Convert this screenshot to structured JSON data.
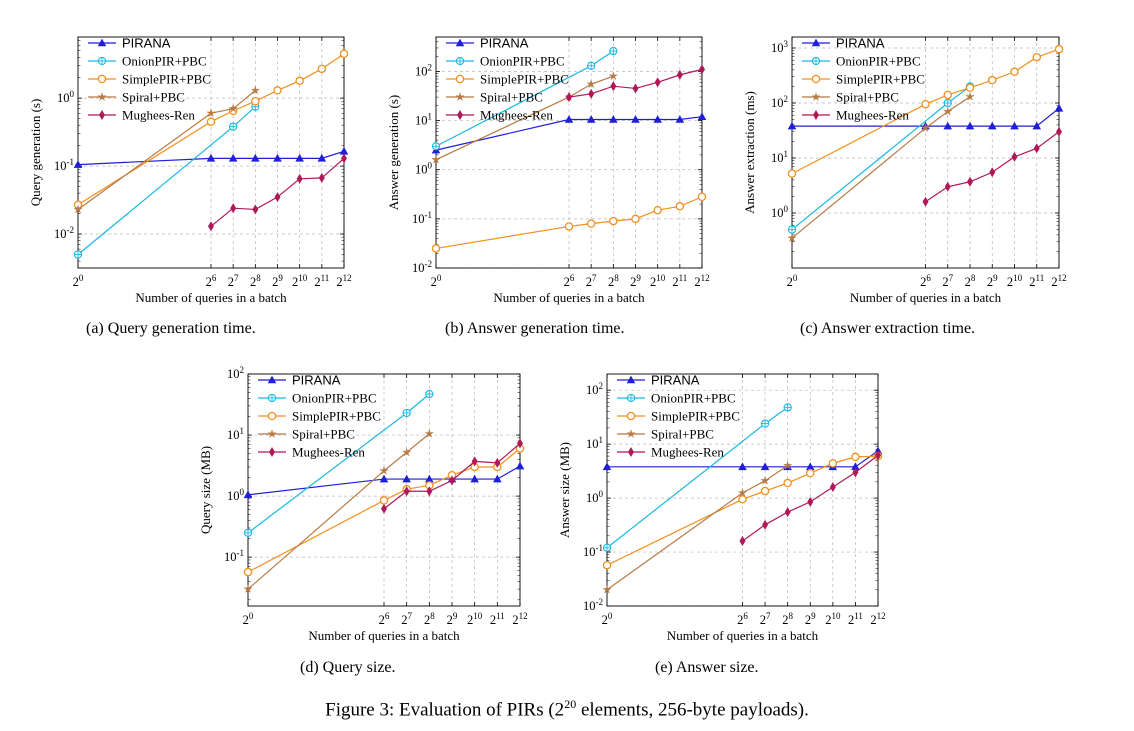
{
  "figure": {
    "caption_prefix": "Figure 3: Evaluation of PIRs (2",
    "caption_sup": "20",
    "caption_suffix": " elements, 256-byte payloads)."
  },
  "legend_names": [
    "PIRANA",
    "OnionPIR+PBC",
    "SimplePIR+PBC",
    "Spiral+PBC",
    "Mughees-Ren"
  ],
  "series_styles": [
    {
      "color": "#1f1fd6",
      "marker": "triangle"
    },
    {
      "color": "#1ab8e0",
      "marker": "circle-plus"
    },
    {
      "color": "#f0901e",
      "marker": "circle"
    },
    {
      "color": "#b87a45",
      "marker": "star"
    },
    {
      "color": "#b0185a",
      "marker": "diamond"
    }
  ],
  "chart_data": [
    {
      "id": "a",
      "type": "line",
      "caption": "(a) Query generation time.",
      "xlabel": "Number of queries in a batch",
      "ylabel": "Query generation (s)",
      "x_scale": "log2",
      "y_scale": "log10",
      "xlim_exp": [
        0,
        12
      ],
      "ylim_exp": [
        -2.5,
        0.9
      ],
      "ytick_exps": [
        -2,
        -1,
        0
      ],
      "xticks": [
        "2⁰",
        "2⁶",
        "2⁷",
        "2⁸",
        "2⁹",
        "2¹⁰",
        "2¹¹",
        "2¹²"
      ],
      "xtick_exps": [
        0,
        6,
        7,
        8,
        9,
        10,
        11,
        12
      ],
      "series": [
        {
          "name": "PIRANA",
          "x_exp": [
            0,
            6,
            7,
            8,
            9,
            10,
            11,
            12
          ],
          "y": [
            0.105,
            0.13,
            0.13,
            0.13,
            0.13,
            0.13,
            0.13,
            0.165
          ]
        },
        {
          "name": "OnionPIR+PBC",
          "x_exp": [
            0,
            7,
            8
          ],
          "y": [
            0.005,
            0.38,
            0.75
          ]
        },
        {
          "name": "SimplePIR+PBC",
          "x_exp": [
            0,
            6,
            7,
            8,
            9,
            10,
            11,
            12
          ],
          "y": [
            0.027,
            0.45,
            0.65,
            0.9,
            1.3,
            1.8,
            2.7,
            4.5
          ]
        },
        {
          "name": "Spiral+PBC",
          "x_exp": [
            0,
            6,
            7,
            8
          ],
          "y": [
            0.023,
            0.6,
            0.7,
            1.3
          ]
        },
        {
          "name": "Mughees-Ren",
          "x_exp": [
            6,
            7,
            8,
            9,
            10,
            11,
            12
          ],
          "y": [
            0.013,
            0.024,
            0.023,
            0.035,
            0.065,
            0.067,
            0.13
          ]
        }
      ]
    },
    {
      "id": "b",
      "type": "line",
      "caption": "(b) Answer generation time.",
      "xlabel": "Number of queries in a batch",
      "ylabel": "Answer generation (s)",
      "x_scale": "log2",
      "y_scale": "log10",
      "xlim_exp": [
        0,
        12
      ],
      "ylim_exp": [
        -2,
        2.7
      ],
      "ytick_exps": [
        -2,
        -1,
        0,
        1,
        2
      ],
      "xticks": [
        "2⁰",
        "2⁶",
        "2⁷",
        "2⁸",
        "2⁹",
        "2¹⁰",
        "2¹¹",
        "2¹²"
      ],
      "xtick_exps": [
        0,
        6,
        7,
        8,
        9,
        10,
        11,
        12
      ],
      "series": [
        {
          "name": "PIRANA",
          "x_exp": [
            0,
            6,
            7,
            8,
            9,
            10,
            11,
            12
          ],
          "y": [
            2.5,
            10.5,
            10.5,
            10.5,
            10.5,
            10.5,
            10.5,
            12
          ]
        },
        {
          "name": "OnionPIR+PBC",
          "x_exp": [
            0,
            7,
            8
          ],
          "y": [
            3,
            130,
            260
          ]
        },
        {
          "name": "SimplePIR+PBC",
          "x_exp": [
            0,
            6,
            7,
            8,
            9,
            10,
            11,
            12
          ],
          "y": [
            0.025,
            0.07,
            0.08,
            0.09,
            0.1,
            0.15,
            0.18,
            0.28
          ]
        },
        {
          "name": "Spiral+PBC",
          "x_exp": [
            0,
            6,
            7,
            8
          ],
          "y": [
            1.6,
            30,
            55,
            80
          ]
        },
        {
          "name": "Mughees-Ren",
          "x_exp": [
            6,
            7,
            8,
            9,
            10,
            11,
            12
          ],
          "y": [
            30,
            35,
            50,
            45,
            60,
            85,
            110
          ]
        }
      ]
    },
    {
      "id": "c",
      "type": "line",
      "caption": "(c) Answer extraction time.",
      "xlabel": "Number of queries in a batch",
      "ylabel": "Answer extraction (ms)",
      "x_scale": "log2",
      "y_scale": "log10",
      "xlim_exp": [
        0,
        12
      ],
      "ylim_exp": [
        -1,
        3.2
      ],
      "ytick_exps": [
        0,
        1,
        2,
        3
      ],
      "xticks": [
        "2⁰",
        "2⁶",
        "2⁷",
        "2⁸",
        "2⁹",
        "2¹⁰",
        "2¹¹",
        "2¹²"
      ],
      "xtick_exps": [
        0,
        6,
        7,
        8,
        9,
        10,
        11,
        12
      ],
      "series": [
        {
          "name": "PIRANA",
          "x_exp": [
            0,
            6,
            7,
            8,
            9,
            10,
            11,
            12
          ],
          "y": [
            38,
            38,
            38,
            38,
            38,
            38,
            38,
            80
          ]
        },
        {
          "name": "OnionPIR+PBC",
          "x_exp": [
            0,
            7,
            8
          ],
          "y": [
            0.5,
            100,
            200
          ]
        },
        {
          "name": "SimplePIR+PBC",
          "x_exp": [
            0,
            6,
            7,
            8,
            9,
            10,
            11,
            12
          ],
          "y": [
            5.2,
            95,
            140,
            190,
            260,
            370,
            680,
            950
          ]
        },
        {
          "name": "Spiral+PBC",
          "x_exp": [
            0,
            6,
            7,
            8
          ],
          "y": [
            0.35,
            35,
            70,
            130
          ]
        },
        {
          "name": "Mughees-Ren",
          "x_exp": [
            6,
            7,
            8,
            9,
            10,
            11,
            12
          ],
          "y": [
            1.6,
            3.0,
            3.7,
            5.5,
            10.5,
            15,
            30
          ]
        }
      ]
    },
    {
      "id": "d",
      "type": "line",
      "caption": "(d) Query size.",
      "xlabel": "Number of queries in a batch",
      "ylabel": "Query size (MB)",
      "x_scale": "log2",
      "y_scale": "log10",
      "xlim_exp": [
        0,
        12
      ],
      "ylim_exp": [
        -1.8,
        2
      ],
      "ytick_exps": [
        -1,
        0,
        1,
        2
      ],
      "xticks": [
        "2⁰",
        "2⁶",
        "2⁷",
        "2⁸",
        "2⁹",
        "2¹⁰",
        "2¹¹",
        "2¹²"
      ],
      "xtick_exps": [
        0,
        6,
        7,
        8,
        9,
        10,
        11,
        12
      ],
      "series": [
        {
          "name": "PIRANA",
          "x_exp": [
            0,
            6,
            7,
            8,
            9,
            10,
            11,
            12
          ],
          "y": [
            1.05,
            1.9,
            1.9,
            1.9,
            1.9,
            1.9,
            1.9,
            3.1
          ]
        },
        {
          "name": "OnionPIR+PBC",
          "x_exp": [
            0,
            7,
            8
          ],
          "y": [
            0.25,
            23,
            47
          ]
        },
        {
          "name": "SimplePIR+PBC",
          "x_exp": [
            0,
            6,
            7,
            8,
            9,
            10,
            11,
            12
          ],
          "y": [
            0.057,
            0.85,
            1.3,
            1.5,
            2.2,
            3.0,
            3.0,
            6.0
          ]
        },
        {
          "name": "Spiral+PBC",
          "x_exp": [
            0,
            6,
            7,
            8
          ],
          "y": [
            0.03,
            2.6,
            5.2,
            10.5
          ]
        },
        {
          "name": "Mughees-Ren",
          "x_exp": [
            6,
            7,
            8,
            9,
            10,
            11,
            12
          ],
          "y": [
            0.62,
            1.2,
            1.2,
            1.8,
            3.7,
            3.5,
            7.3
          ]
        }
      ]
    },
    {
      "id": "e",
      "type": "line",
      "caption": "(e) Answer size.",
      "xlabel": "Number of queries in a batch",
      "ylabel": "Answer size (MB)",
      "x_scale": "log2",
      "y_scale": "log10",
      "xlim_exp": [
        0,
        12
      ],
      "ylim_exp": [
        -2,
        2.3
      ],
      "ytick_exps": [
        -2,
        -1,
        0,
        1,
        2
      ],
      "xticks": [
        "2⁰",
        "2⁶",
        "2⁷",
        "2⁸",
        "2⁹",
        "2¹⁰",
        "2¹¹",
        "2¹²"
      ],
      "xtick_exps": [
        0,
        6,
        7,
        8,
        9,
        10,
        11,
        12
      ],
      "series": [
        {
          "name": "PIRANA",
          "x_exp": [
            0,
            6,
            7,
            8,
            9,
            10,
            11,
            12
          ],
          "y": [
            3.8,
            3.8,
            3.8,
            3.8,
            3.8,
            3.8,
            3.8,
            7.5
          ]
        },
        {
          "name": "OnionPIR+PBC",
          "x_exp": [
            0,
            7,
            8
          ],
          "y": [
            0.12,
            24,
            48
          ]
        },
        {
          "name": "SimplePIR+PBC",
          "x_exp": [
            0,
            6,
            7,
            8,
            9,
            10,
            11,
            12
          ],
          "y": [
            0.057,
            0.95,
            1.35,
            1.9,
            2.9,
            4.4,
            5.8,
            6.0
          ]
        },
        {
          "name": "Spiral+PBC",
          "x_exp": [
            0,
            6,
            7,
            8
          ],
          "y": [
            0.02,
            1.25,
            2.1,
            4.0
          ]
        },
        {
          "name": "Mughees-Ren",
          "x_exp": [
            6,
            7,
            8,
            9,
            10,
            11,
            12
          ],
          "y": [
            0.16,
            0.32,
            0.55,
            0.85,
            1.6,
            3.0,
            6.2
          ]
        }
      ]
    }
  ]
}
